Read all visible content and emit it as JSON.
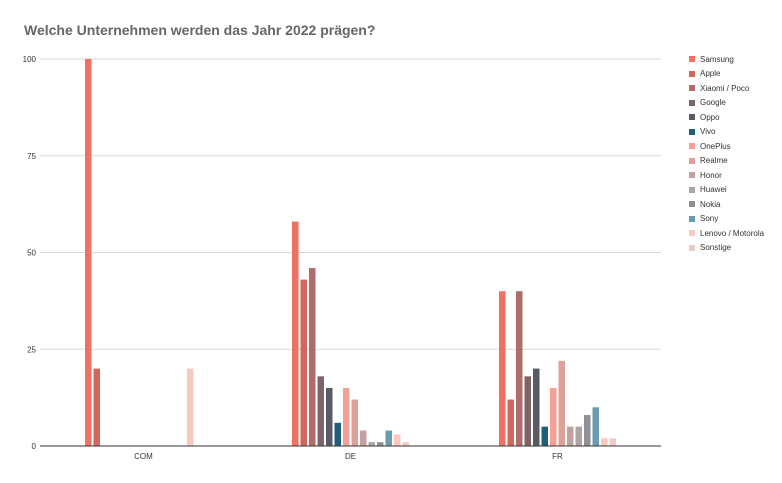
{
  "chart_data": {
    "type": "bar",
    "title": "Welche Unternehmen werden das Jahr 2022 prägen?",
    "categories": [
      "COM",
      "DE",
      "FR"
    ],
    "ylim": [
      0,
      100
    ],
    "yticks": [
      0,
      25,
      50,
      75,
      100
    ],
    "grid": true,
    "legend_position": "right",
    "series": [
      {
        "name": "Samsung",
        "color": "#f07162",
        "values": [
          100,
          58,
          40
        ]
      },
      {
        "name": "Apple",
        "color": "#d3665b",
        "values": [
          20,
          43,
          12
        ]
      },
      {
        "name": "Xiaomi / Poco",
        "color": "#b06b6b",
        "values": [
          null,
          46,
          40
        ]
      },
      {
        "name": "Google",
        "color": "#7d6468",
        "values": [
          null,
          18,
          18
        ]
      },
      {
        "name": "Oppo",
        "color": "#575b63",
        "values": [
          null,
          15,
          20
        ]
      },
      {
        "name": "Vivo",
        "color": "#1f5f79",
        "values": [
          null,
          6,
          5
        ]
      },
      {
        "name": "OnePlus",
        "color": "#f4a097",
        "values": [
          null,
          15,
          15
        ]
      },
      {
        "name": "Realme",
        "color": "#e0a09a",
        "values": [
          null,
          12,
          22
        ]
      },
      {
        "name": "Honor",
        "color": "#c4a09e",
        "values": [
          null,
          4,
          5
        ]
      },
      {
        "name": "Huawei",
        "color": "#aea3a5",
        "values": [
          null,
          1,
          5
        ]
      },
      {
        "name": "Nokia",
        "color": "#8f8f96",
        "values": [
          null,
          1,
          8
        ]
      },
      {
        "name": "Sony",
        "color": "#6a9bb1",
        "values": [
          null,
          4,
          10
        ]
      },
      {
        "name": "Lenovo / Motorola",
        "color": "#f9c8c1",
        "values": [
          20,
          3,
          2
        ]
      },
      {
        "name": "Sonstige",
        "color": "#f2c9c4",
        "values": [
          null,
          1,
          2
        ]
      }
    ]
  }
}
